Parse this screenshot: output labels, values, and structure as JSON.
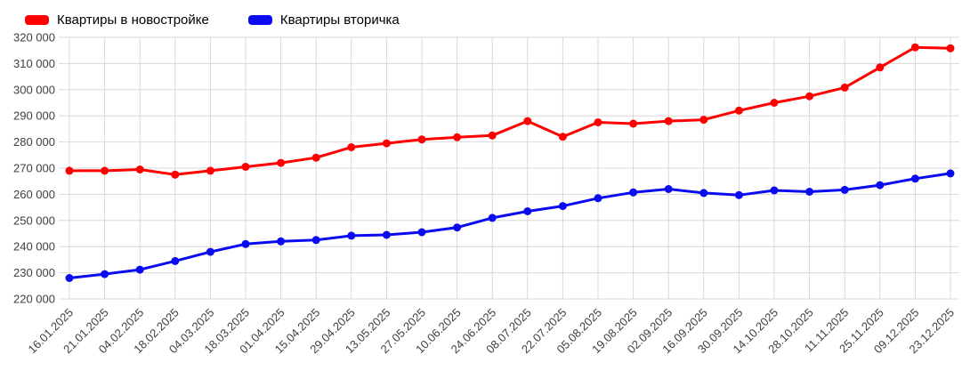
{
  "chart_data": {
    "type": "line",
    "title": "",
    "xlabel": "",
    "ylabel": "",
    "ylim": [
      220000,
      320000
    ],
    "ytick_step": 10000,
    "grid": true,
    "legend_position": "top-left",
    "categories": [
      "16.01.2025",
      "21.01.2025",
      "04.02.2025",
      "18.02.2025",
      "04.03.2025",
      "18.03.2025",
      "01.04.2025",
      "15.04.2025",
      "29.04.2025",
      "13.05.2025",
      "27.05.2025",
      "10.06.2025",
      "24.06.2025",
      "08.07.2025",
      "22.07.2025",
      "05.08.2025",
      "19.08.2025",
      "02.09.2025",
      "16.09.2025",
      "30.09.2025",
      "14.10.2025",
      "28.10.2025",
      "11.11.2025",
      "25.11.2025",
      "09.12.2025",
      "23.12.2025"
    ],
    "series": [
      {
        "name": "Квартиры в новостройке",
        "color": "#ff0000",
        "values": [
          269000,
          269000,
          269500,
          267500,
          269000,
          270500,
          272000,
          274000,
          278000,
          279500,
          281000,
          281800,
          282500,
          288000,
          282000,
          287500,
          287000,
          288000,
          288500,
          292000,
          295000,
          297500,
          300800,
          308500,
          316200,
          315800
        ]
      },
      {
        "name": "Квартиры вторичка",
        "color": "#0b0bf0",
        "values": [
          228000,
          229500,
          231200,
          234500,
          238000,
          241000,
          242000,
          242500,
          244200,
          244500,
          245500,
          247300,
          251000,
          253500,
          255500,
          258500,
          260700,
          262000,
          260500,
          259700,
          261500,
          261000,
          261700,
          263500,
          266000,
          268000
        ]
      }
    ]
  }
}
